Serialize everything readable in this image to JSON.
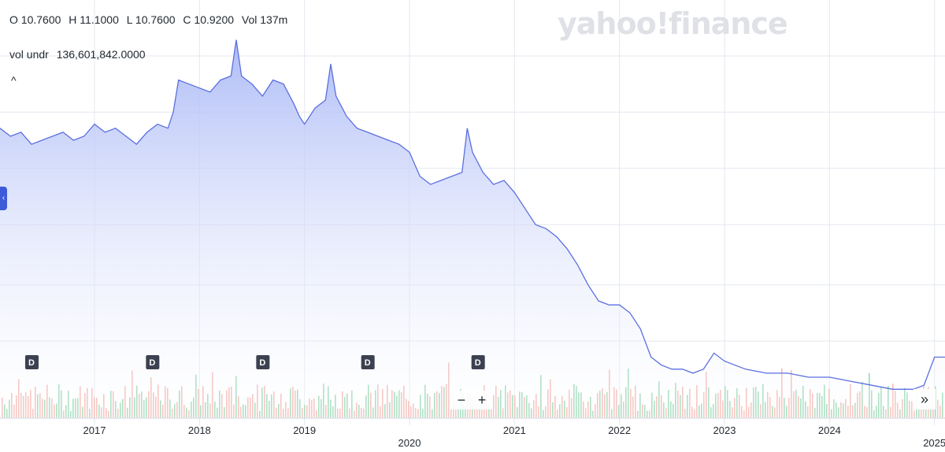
{
  "ohlc": {
    "open": "O 10.7600",
    "high": "H 11.1000",
    "low": "L 10.7600",
    "close": "C 10.9200",
    "volume": "Vol 137m"
  },
  "vol_undr": {
    "label": "vol undr",
    "value": "136,601,842.0000"
  },
  "caret": "^",
  "logo": "yahoo!finance",
  "zoom": {
    "minus": "−",
    "plus": "+"
  },
  "forward": "»",
  "colors": {
    "line": "#5b6fe0",
    "area_top": "#a9b8f6",
    "area_bottom": "#ffffff",
    "vol_up": "#7fd0a3",
    "vol_down": "#f2a7a1",
    "grid": "#e3e7ef",
    "dividend": "#3b4150"
  },
  "chart_data": {
    "type": "area",
    "x_tick_labels": [
      "2017",
      "2018",
      "2019",
      "2020",
      "2021",
      "2022",
      "2023",
      "2024",
      "2025"
    ],
    "x_tick_positions": [
      2017,
      2018,
      2019,
      2020,
      2021,
      2022,
      2023,
      2024,
      2025
    ],
    "xlim": [
      2016.1,
      2025.1
    ],
    "ylim": [
      0,
      100
    ],
    "y_axis_labels": "not shown",
    "grid": true,
    "series": [
      {
        "x": [
          2016.1,
          2016.2,
          2016.3,
          2016.4,
          2016.5,
          2016.6,
          2016.7,
          2016.8,
          2016.9,
          2017.0,
          2017.1,
          2017.2,
          2017.3,
          2017.4,
          2017.5,
          2017.6,
          2017.7,
          2017.75,
          2017.8,
          2017.9,
          2018.0,
          2018.1,
          2018.2,
          2018.3,
          2018.35,
          2018.4,
          2018.45,
          2018.5,
          2018.6,
          2018.7,
          2018.8,
          2018.9,
          2018.95,
          2019.0,
          2019.1,
          2019.2,
          2019.25,
          2019.3,
          2019.4,
          2019.5,
          2019.6,
          2019.7,
          2019.8,
          2019.9,
          2020.0,
          2020.1,
          2020.2,
          2020.3,
          2020.4,
          2020.5,
          2020.55,
          2020.6,
          2020.7,
          2020.8,
          2020.9,
          2021.0,
          2021.1,
          2021.2,
          2021.3,
          2021.4,
          2021.5,
          2021.6,
          2021.7,
          2021.8,
          2021.9,
          2022.0,
          2022.1,
          2022.2,
          2022.3,
          2022.4,
          2022.5,
          2022.6,
          2022.7,
          2022.8,
          2022.9,
          2023.0,
          2023.2,
          2023.4,
          2023.6,
          2023.8,
          2024.0,
          2024.2,
          2024.4,
          2024.6,
          2024.8,
          2024.9,
          2025.0,
          2025.1
        ],
        "y": [
          72,
          70,
          71,
          68,
          69,
          70,
          71,
          69,
          70,
          73,
          71,
          72,
          70,
          68,
          71,
          73,
          72,
          76,
          84,
          83,
          82,
          81,
          84,
          85,
          94,
          85,
          84,
          83,
          80,
          84,
          83,
          78,
          75,
          73,
          77,
          79,
          88,
          80,
          75,
          72,
          71,
          70,
          69,
          68,
          66,
          60,
          58,
          59,
          60,
          61,
          72,
          66,
          61,
          58,
          59,
          56,
          52,
          48,
          47,
          45,
          42,
          38,
          33,
          29,
          28,
          28,
          26,
          22,
          15,
          13,
          12,
          12,
          11,
          12,
          16,
          14,
          12,
          11,
          11,
          10,
          10,
          9,
          8,
          7,
          7,
          8,
          15,
          15
        ]
      }
    ]
  }
}
